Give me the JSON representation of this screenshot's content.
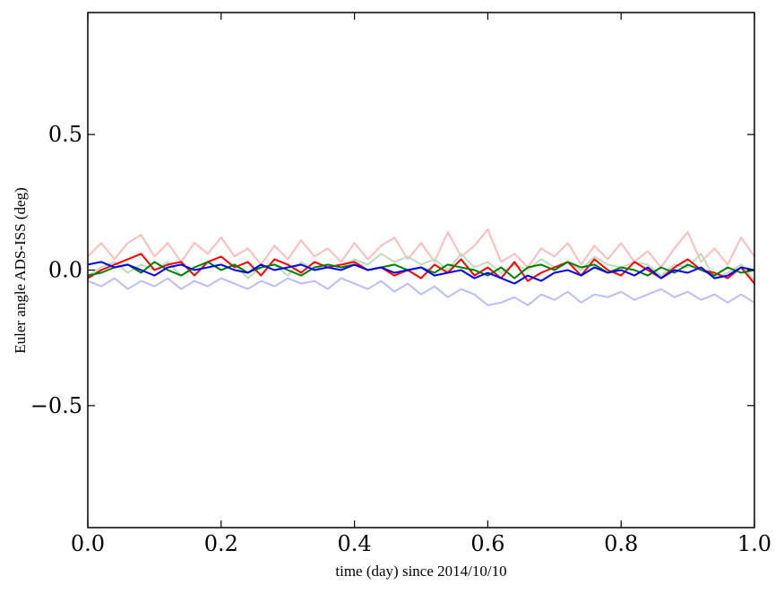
{
  "chart_data": {
    "type": "line",
    "xlabel": "time (day) since 2014/10/10",
    "ylabel": "Euler angle ADS-ISS (deg)",
    "xlim": [
      0.0,
      1.0
    ],
    "ylim": [
      -0.95,
      0.95
    ],
    "grid": false,
    "legend": "none",
    "x_ticks": [
      {
        "value": 0.0,
        "label": "0.0"
      },
      {
        "value": 0.2,
        "label": "0.2"
      },
      {
        "value": 0.4,
        "label": "0.4"
      },
      {
        "value": 0.6,
        "label": "0.6"
      },
      {
        "value": 0.8,
        "label": "0.8"
      },
      {
        "value": 1.0,
        "label": "1.0"
      }
    ],
    "y_ticks": [
      {
        "value": 0.5,
        "label": "0.5"
      },
      {
        "value": 0.0,
        "label": "0.0"
      },
      {
        "value": -0.5,
        "label": "−0.5"
      }
    ],
    "x": [
      0.0,
      0.02,
      0.04,
      0.06,
      0.08,
      0.1,
      0.12,
      0.14,
      0.16,
      0.18,
      0.2,
      0.22,
      0.24,
      0.26,
      0.28,
      0.3,
      0.32,
      0.34,
      0.36,
      0.38,
      0.4,
      0.42,
      0.44,
      0.46,
      0.48,
      0.5,
      0.52,
      0.54,
      0.56,
      0.58,
      0.6,
      0.62,
      0.64,
      0.66,
      0.68,
      0.7,
      0.72,
      0.74,
      0.76,
      0.78,
      0.8,
      0.82,
      0.84,
      0.86,
      0.88,
      0.9,
      0.92,
      0.94,
      0.96,
      0.98,
      1.0
    ],
    "series": [
      {
        "color": "#ffbbbb",
        "values": [
          0.05,
          0.1,
          0.04,
          0.1,
          0.13,
          0.05,
          0.1,
          0.03,
          0.1,
          0.06,
          0.12,
          0.05,
          0.08,
          0.02,
          0.09,
          0.04,
          0.11,
          0.05,
          0.08,
          0.03,
          0.1,
          0.04,
          0.09,
          0.12,
          0.04,
          0.1,
          0.03,
          0.14,
          0.05,
          0.09,
          0.15,
          0.03,
          0.06,
          0.01,
          0.08,
          0.05,
          0.1,
          0.02,
          0.09,
          0.04,
          0.1,
          0.03,
          0.07,
          0.01,
          0.08,
          0.14,
          0.03,
          0.08,
          0.02,
          0.12,
          0.05
        ]
      },
      {
        "color": "#bbddbb",
        "values": [
          -0.02,
          0.01,
          0.03,
          -0.01,
          0.02,
          0.0,
          0.03,
          -0.02,
          0.01,
          0.03,
          0.0,
          0.02,
          -0.03,
          0.01,
          0.02,
          -0.02,
          0.03,
          0.0,
          0.02,
          0.01,
          0.04,
          0.02,
          0.06,
          0.03,
          0.05,
          0.02,
          0.04,
          0.0,
          0.06,
          0.01,
          0.03,
          -0.01,
          0.02,
          0.0,
          0.04,
          0.01,
          0.03,
          0.0,
          0.05,
          0.02,
          0.01,
          0.03,
          0.02,
          -0.02,
          0.02,
          0.01,
          0.06,
          -0.03,
          -0.01,
          0.02,
          -0.04
        ]
      },
      {
        "color": "#bbbbff",
        "values": [
          -0.04,
          -0.06,
          -0.03,
          -0.07,
          -0.04,
          -0.06,
          -0.03,
          -0.07,
          -0.04,
          -0.06,
          -0.03,
          -0.05,
          -0.07,
          -0.04,
          -0.06,
          -0.03,
          -0.05,
          -0.04,
          -0.07,
          -0.03,
          -0.05,
          -0.07,
          -0.04,
          -0.08,
          -0.05,
          -0.09,
          -0.06,
          -0.1,
          -0.07,
          -0.09,
          -0.13,
          -0.12,
          -0.1,
          -0.13,
          -0.09,
          -0.11,
          -0.08,
          -0.12,
          -0.09,
          -0.1,
          -0.08,
          -0.11,
          -0.09,
          -0.07,
          -0.1,
          -0.08,
          -0.11,
          -0.09,
          -0.12,
          -0.09,
          -0.12
        ]
      },
      {
        "color": "#ff0000",
        "values": [
          -0.03,
          0.0,
          0.02,
          0.04,
          0.06,
          0.0,
          0.02,
          0.03,
          -0.02,
          0.03,
          0.05,
          0.01,
          0.03,
          -0.02,
          0.04,
          0.02,
          -0.01,
          0.03,
          0.01,
          0.02,
          0.03,
          0.0,
          0.01,
          -0.02,
          0.0,
          -0.03,
          0.02,
          -0.01,
          0.04,
          -0.02,
          0.01,
          -0.03,
          0.03,
          -0.04,
          -0.01,
          0.01,
          0.03,
          -0.02,
          0.04,
          0.0,
          -0.02,
          0.03,
          0.0,
          -0.03,
          0.01,
          0.04,
          0.0,
          -0.01,
          -0.03,
          0.01,
          -0.05
        ]
      },
      {
        "color": "#008000",
        "values": [
          -0.02,
          -0.01,
          0.01,
          0.02,
          -0.01,
          0.03,
          0.0,
          -0.02,
          0.01,
          0.03,
          0.0,
          0.02,
          -0.01,
          0.01,
          0.02,
          0.0,
          -0.02,
          0.01,
          0.02,
          0.01,
          0.02,
          0.0,
          0.01,
          0.02,
          0.0,
          0.01,
          -0.01,
          0.02,
          0.01,
          0.0,
          -0.02,
          0.01,
          -0.03,
          0.01,
          0.02,
          0.0,
          0.03,
          0.01,
          0.02,
          -0.01,
          0.01,
          0.0,
          -0.02,
          0.01,
          -0.01,
          0.02,
          0.0,
          -0.02,
          0.01,
          -0.01,
          0.0
        ]
      },
      {
        "color": "#0000ee",
        "values": [
          0.02,
          0.03,
          0.01,
          0.02,
          0.0,
          -0.02,
          0.01,
          0.02,
          0.0,
          0.01,
          0.02,
          0.0,
          -0.01,
          0.02,
          0.0,
          0.01,
          0.02,
          0.0,
          0.01,
          0.0,
          0.02,
          0.0,
          0.01,
          -0.01,
          0.0,
          0.01,
          -0.02,
          -0.01,
          0.0,
          -0.03,
          -0.01,
          -0.03,
          -0.05,
          -0.02,
          -0.04,
          -0.01,
          0.0,
          -0.02,
          0.01,
          -0.01,
          0.0,
          -0.02,
          0.01,
          -0.03,
          0.0,
          -0.01,
          0.01,
          -0.03,
          -0.02,
          0.01,
          0.0
        ]
      }
    ]
  }
}
